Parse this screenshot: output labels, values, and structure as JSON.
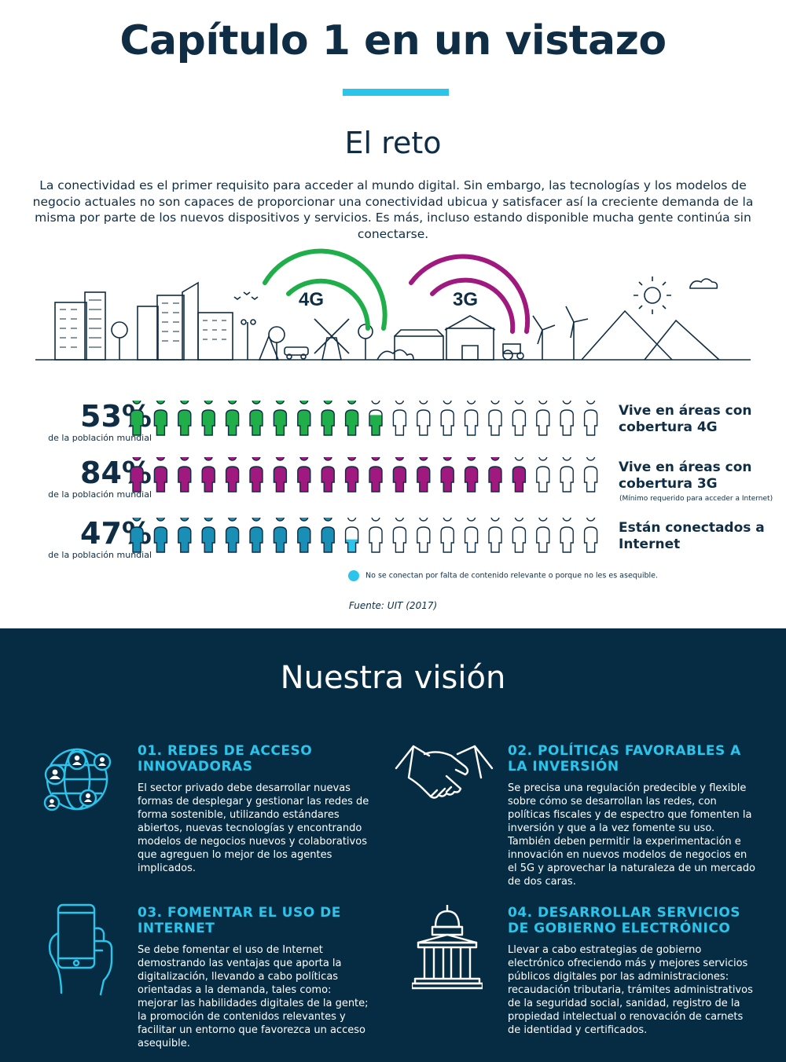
{
  "header": {
    "title": "Capítulo 1 en un vistazo",
    "subtitle": "El reto",
    "intro": "La conectividad es el primer requisito para acceder al mundo digital. Sin embargo, las tecnologías y los modelos de negocio actuales no son capaces de proporcionar una conectividad ubicua y satisfacer así la creciente demanda de la misma por parte de los nuevos dispositivos y servicios. Es más, incluso estando disponible mucha gente continúa sin conectarse."
  },
  "scene": {
    "label_4g": "4G",
    "label_3g": "3G",
    "color_4g": "#1fae4a",
    "color_3g": "#a0197e"
  },
  "stats": [
    {
      "percent": "53%",
      "sub": "de la población mundial",
      "label": "Vive en áreas con cobertura 4G",
      "note": "",
      "value": 53,
      "color": "#1fae4a"
    },
    {
      "percent": "84%",
      "sub": "de la población mundial",
      "label": "Vive en áreas con cobertura 3G",
      "note": "(Mínimo requerido para acceder a Internet)",
      "value": 84,
      "color": "#a0197e"
    },
    {
      "percent": "47%",
      "sub": "de la población mundial",
      "label": "Están conectados a Internet",
      "note": "",
      "value": 47,
      "color": "#1a8fb5",
      "secondary_color": "#2bc4ea"
    }
  ],
  "legend": "No se conectan por falta de contenido relevante o porque no les es asequible.",
  "source": "Fuente: UIT (2017)",
  "vision": {
    "title": "Nuestra visión",
    "items": [
      {
        "title": "01. REDES DE ACCESO INNOVADORAS",
        "text": "El sector privado debe desarrollar nuevas formas de desplegar y gestionar las redes de forma sostenible, utilizando estándares abiertos, nuevas tecnologías y encontrando modelos de negocios nuevos y colaborativos que agreguen lo mejor de los agentes implicados.",
        "icon": "network-globe-icon"
      },
      {
        "title": "02. POLÍTICAS FAVORABLES A LA INVERSIÓN",
        "text": "Se precisa una regulación predecible y flexible sobre cómo se desarrollan las redes, con políticas fiscales y de espectro que fomenten la inversión y que a la vez fomente su uso. También deben permitir la experimentación e innovación en nuevos modelos de negocios en el 5G y aprovechar la naturaleza de un mercado de dos caras.",
        "icon": "handshake-icon"
      },
      {
        "title": "03. FOMENTAR EL USO DE INTERNET",
        "text": "Se debe fomentar el uso de Internet demostrando las ventajas que aporta la digitalización, llevando a cabo políticas orientadas a la demanda, tales como: mejorar las habilidades digitales de la gente; la promoción de contenidos relevantes y facilitar un entorno que favorezca un acceso asequible.",
        "icon": "smartphone-hand-icon"
      },
      {
        "title": "04. DESARROLLAR SERVICIOS DE GOBIERNO ELECTRÓNICO",
        "text": "Llevar a cabo estrategias de gobierno electrónico ofreciendo más y mejores servicios públicos digitales por las administraciones: recaudación tributaria, trámites administrativos de la seguridad social, sanidad, registro de la propiedad intelectual o renovación de carnets de identidad y certificados.",
        "icon": "government-building-icon"
      }
    ]
  }
}
